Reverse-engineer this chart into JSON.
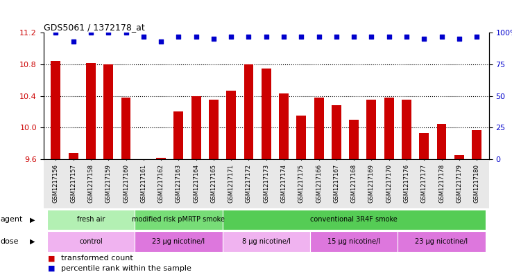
{
  "title": "GDS5061 / 1372178_at",
  "samples": [
    "GSM1217156",
    "GSM1217157",
    "GSM1217158",
    "GSM1217159",
    "GSM1217160",
    "GSM1217161",
    "GSM1217162",
    "GSM1217163",
    "GSM1217164",
    "GSM1217165",
    "GSM1217171",
    "GSM1217172",
    "GSM1217173",
    "GSM1217174",
    "GSM1217175",
    "GSM1217166",
    "GSM1217167",
    "GSM1217168",
    "GSM1217169",
    "GSM1217170",
    "GSM1217176",
    "GSM1217177",
    "GSM1217178",
    "GSM1217179",
    "GSM1217180"
  ],
  "transformed_counts": [
    10.84,
    9.68,
    10.82,
    10.8,
    10.38,
    9.6,
    9.62,
    10.2,
    10.4,
    10.35,
    10.47,
    10.8,
    10.75,
    10.43,
    10.15,
    10.38,
    10.28,
    10.1,
    10.35,
    10.38,
    10.35,
    9.93,
    10.05,
    9.65,
    9.97
  ],
  "percentile_ranks": [
    100,
    93,
    100,
    100,
    100,
    97,
    93,
    97,
    97,
    95,
    97,
    97,
    97,
    97,
    97,
    97,
    97,
    97,
    97,
    97,
    97,
    95,
    97,
    95,
    97
  ],
  "ylim_left": [
    9.6,
    11.2
  ],
  "ylim_right": [
    0,
    100
  ],
  "yticks_left": [
    9.6,
    10.0,
    10.4,
    10.8,
    11.2
  ],
  "yticks_right": [
    0,
    25,
    50,
    75,
    100
  ],
  "bar_color": "#cc0000",
  "dot_color": "#0000cc",
  "bar_width": 0.55,
  "baseline": 9.6,
  "agent_groups": [
    {
      "label": "fresh air",
      "start": 0,
      "end": 4,
      "color": "#b3f0b3"
    },
    {
      "label": "modified risk pMRTP smoke",
      "start": 5,
      "end": 9,
      "color": "#77dd77"
    },
    {
      "label": "conventional 3R4F smoke",
      "start": 10,
      "end": 24,
      "color": "#55cc55"
    }
  ],
  "dose_groups": [
    {
      "label": "control",
      "start": 0,
      "end": 4,
      "color": "#f0b3f0"
    },
    {
      "label": "23 μg nicotine/l",
      "start": 5,
      "end": 9,
      "color": "#dd77dd"
    },
    {
      "label": "8 μg nicotine/l",
      "start": 10,
      "end": 14,
      "color": "#f0b3f0"
    },
    {
      "label": "15 μg nicotine/l",
      "start": 15,
      "end": 19,
      "color": "#dd77dd"
    },
    {
      "label": "23 μg nicotine/l",
      "start": 20,
      "end": 24,
      "color": "#dd77dd"
    }
  ],
  "legend_items": [
    {
      "label": "transformed count",
      "color": "#cc0000"
    },
    {
      "label": "percentile rank within the sample",
      "color": "#0000cc"
    }
  ],
  "agent_label": "agent",
  "dose_label": "dose",
  "grid_lines": [
    10.0,
    10.4,
    10.8
  ],
  "fig_bg": "#ffffff",
  "plot_bg": "#ffffff"
}
